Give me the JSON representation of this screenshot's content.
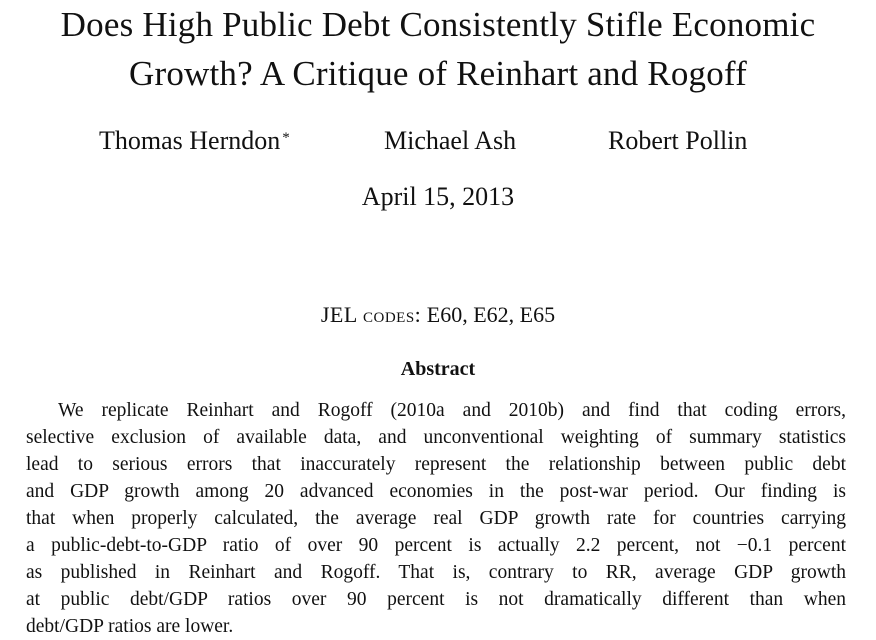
{
  "title_lines": [
    "Does High Public Debt Consistently Stifle Economic",
    "Growth? A Critique of Reinhart and Rogoff"
  ],
  "authors": [
    {
      "name": "Thomas Herndon",
      "mark": "*"
    },
    {
      "name": "Michael Ash",
      "mark": ""
    },
    {
      "name": "Robert Pollin",
      "mark": ""
    }
  ],
  "date": "April 15, 2013",
  "jel": {
    "label": "JEL codes:",
    "codes": "E60, E62, E65"
  },
  "abstract": {
    "heading": "Abstract",
    "lines": [
      "We replicate Reinhart and Rogoff (2010a and 2010b) and find that coding errors,",
      "selective exclusion of available data, and unconventional weighting of summary statistics",
      "lead to serious errors that inaccurately represent the relationship between public debt",
      "and GDP growth among 20 advanced economies in the post-war period. Our finding is",
      "that when properly calculated, the average real GDP growth rate for countries carrying",
      "a public-debt-to-GDP ratio of over 90 percent is actually 2.2 percent, not −0.1 percent",
      "as published in Reinhart and Rogoff. That is, contrary to RR, average GDP growth",
      "at public debt/GDP ratios over 90 percent is not dramatically different than when",
      "debt/GDP ratios are lower."
    ]
  }
}
